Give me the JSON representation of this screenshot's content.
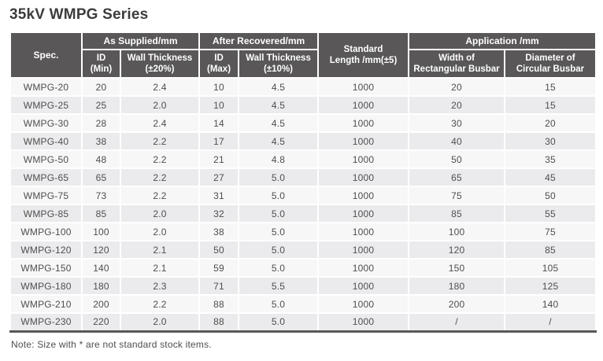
{
  "title": "35kV WMPG Series",
  "note": "Note: Size with * are not standard stock items.",
  "colors": {
    "header_bg": "#595757",
    "row_light": "#f7f7f8",
    "row_dark": "#ebebed",
    "title_text": "#3c3c3d",
    "body_text": "#4f4e4e",
    "cell_border": "#ffffff"
  },
  "table": {
    "headers": {
      "spec": "Spec.",
      "as_supplied": "As Supplied/mm",
      "after_recovered": "After Recovered/mm",
      "standard_length": "Standard\nLength /mm(±5)",
      "application": "Application /mm",
      "id_min": "ID\n(Min)",
      "wall_20": "Wall Thickness\n(±20%)",
      "id_max": "ID\n(Max)",
      "wall_10": "Wall Thickness\n(±10%)",
      "width_rect": "Width of\nRectangular Busbar",
      "dia_circ": "Diameter of\nCircular Busbar"
    },
    "rows": [
      [
        "WMPG-20",
        "20",
        "2.4",
        "10",
        "4.5",
        "1000",
        "20",
        "15"
      ],
      [
        "WMPG-25",
        "25",
        "2.0",
        "10",
        "4.5",
        "1000",
        "20",
        "15"
      ],
      [
        "WMPG-30",
        "28",
        "2.4",
        "14",
        "4.5",
        "1000",
        "30",
        "20"
      ],
      [
        "WMPG-40",
        "38",
        "2.2",
        "17",
        "4.5",
        "1000",
        "40",
        "30"
      ],
      [
        "WMPG-50",
        "48",
        "2.2",
        "21",
        "4.8",
        "1000",
        "50",
        "35"
      ],
      [
        "WMPG-65",
        "65",
        "2.2",
        "27",
        "5.0",
        "1000",
        "65",
        "45"
      ],
      [
        "WMPG-75",
        "73",
        "2.2",
        "31",
        "5.0",
        "1000",
        "75",
        "50"
      ],
      [
        "WMPG-85",
        "85",
        "2.0",
        "32",
        "5.0",
        "1000",
        "85",
        "55"
      ],
      [
        "WMPG-100",
        "100",
        "2.0",
        "38",
        "5.0",
        "1000",
        "100",
        "75"
      ],
      [
        "WMPG-120",
        "120",
        "2.1",
        "50",
        "5.0",
        "1000",
        "120",
        "85"
      ],
      [
        "WMPG-150",
        "140",
        "2.1",
        "59",
        "5.0",
        "1000",
        "150",
        "105"
      ],
      [
        "WMPG-180",
        "180",
        "2.3",
        "71",
        "5.5",
        "1000",
        "180",
        "125"
      ],
      [
        "WMPG-210",
        "200",
        "2.2",
        "88",
        "5.0",
        "1000",
        "200",
        "140"
      ],
      [
        "WMPG-230",
        "220",
        "2.0",
        "88",
        "5.0",
        "1000",
        "/",
        "/"
      ]
    ]
  }
}
